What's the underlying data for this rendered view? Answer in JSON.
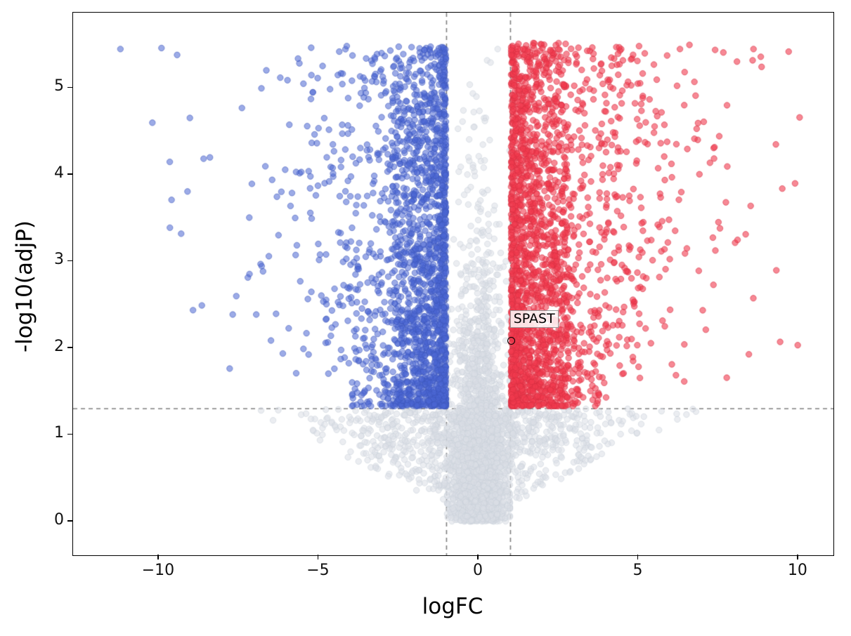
{
  "chart_data": {
    "type": "scatter",
    "title": "",
    "xlabel": "logFC",
    "ylabel": "-log10(adjP)",
    "xlim": [
      -12.68,
      11.1
    ],
    "ylim": [
      -0.39,
      5.87
    ],
    "x_ticks": [
      -10,
      -5,
      0,
      5,
      10
    ],
    "y_ticks": [
      0,
      1,
      2,
      3,
      4,
      5
    ],
    "grid": false,
    "legend": "none",
    "thresholds": {
      "logfc_lines": [
        -1,
        1
      ],
      "pvalue_line": 1.301,
      "line_color": "#7f7f7f",
      "line_style": "dashed"
    },
    "annotation": {
      "label": "SPAST",
      "x": 1.05,
      "y": 2.07,
      "marker": "open-circle",
      "marker_color": "#000000"
    },
    "marker": {
      "radius": 4.2,
      "edge_width": 1
    },
    "series": [
      {
        "name": "not_significant",
        "color": "#dadfe5",
        "edge": "#c9cfd8",
        "alpha": 0.55,
        "clusters": [
          {
            "kind": "center",
            "n": 2300,
            "seed": 11,
            "x_sigma": 0.42,
            "x_clip": 0.98,
            "y_rate": 1.05,
            "y_max": 5.5
          },
          {
            "kind": "wings",
            "n": 950,
            "seed": 12,
            "x_sigma": 2.1,
            "x_clip": 6.8,
            "y_top": 1.3
          }
        ],
        "highlight_points": [
          [
            0.6,
            5.45
          ],
          [
            0.2,
            4.62
          ],
          [
            -0.15,
            4.55
          ],
          [
            0.35,
            4.4
          ]
        ]
      },
      {
        "name": "down_regulated",
        "color": "#4a66d4",
        "edge": "#3d55b8",
        "alpha": 0.55,
        "clusters": [
          {
            "kind": "sig",
            "n": 2000,
            "seed": 21,
            "side": -1,
            "x_max": 10.6,
            "dense_frac": 0.8,
            "dense_span": 1.7,
            "tail_scale": 1.5,
            "y_span": 4.15,
            "y_exp": 1.5
          }
        ],
        "highlight_points": [
          [
            -11.2,
            5.45
          ],
          [
            -10.2,
            4.6
          ],
          [
            -9.6,
            3.71
          ],
          [
            -9.3,
            3.32
          ],
          [
            -8.4,
            4.2
          ],
          [
            -7.4,
            4.77
          ],
          [
            -6.2,
            5.12
          ],
          [
            -4.4,
            5.15
          ],
          [
            -3.6,
            5.12
          ],
          [
            -2.6,
            5.17
          ]
        ]
      },
      {
        "name": "up_regulated",
        "color": "#f23b4e",
        "edge": "#d52f41",
        "alpha": 0.6,
        "clusters": [
          {
            "kind": "sig",
            "n": 2200,
            "seed": 31,
            "side": 1,
            "x_max": 10.1,
            "dense_frac": 0.78,
            "dense_span": 1.8,
            "tail_scale": 1.55,
            "y_span": 4.2,
            "y_exp": 1.4
          }
        ],
        "highlight_points": [
          [
            9.7,
            5.42
          ],
          [
            9.9,
            3.9
          ],
          [
            9.5,
            3.84
          ],
          [
            9.3,
            4.35
          ],
          [
            8.6,
            5.45
          ],
          [
            1.4,
            5.45
          ],
          [
            2.5,
            5.45
          ],
          [
            3.4,
            5.43
          ],
          [
            4.4,
            5.47
          ],
          [
            5.2,
            5.4
          ],
          [
            6.3,
            5.45
          ],
          [
            7.4,
            5.44
          ],
          [
            2.0,
            5.46
          ]
        ]
      }
    ]
  }
}
